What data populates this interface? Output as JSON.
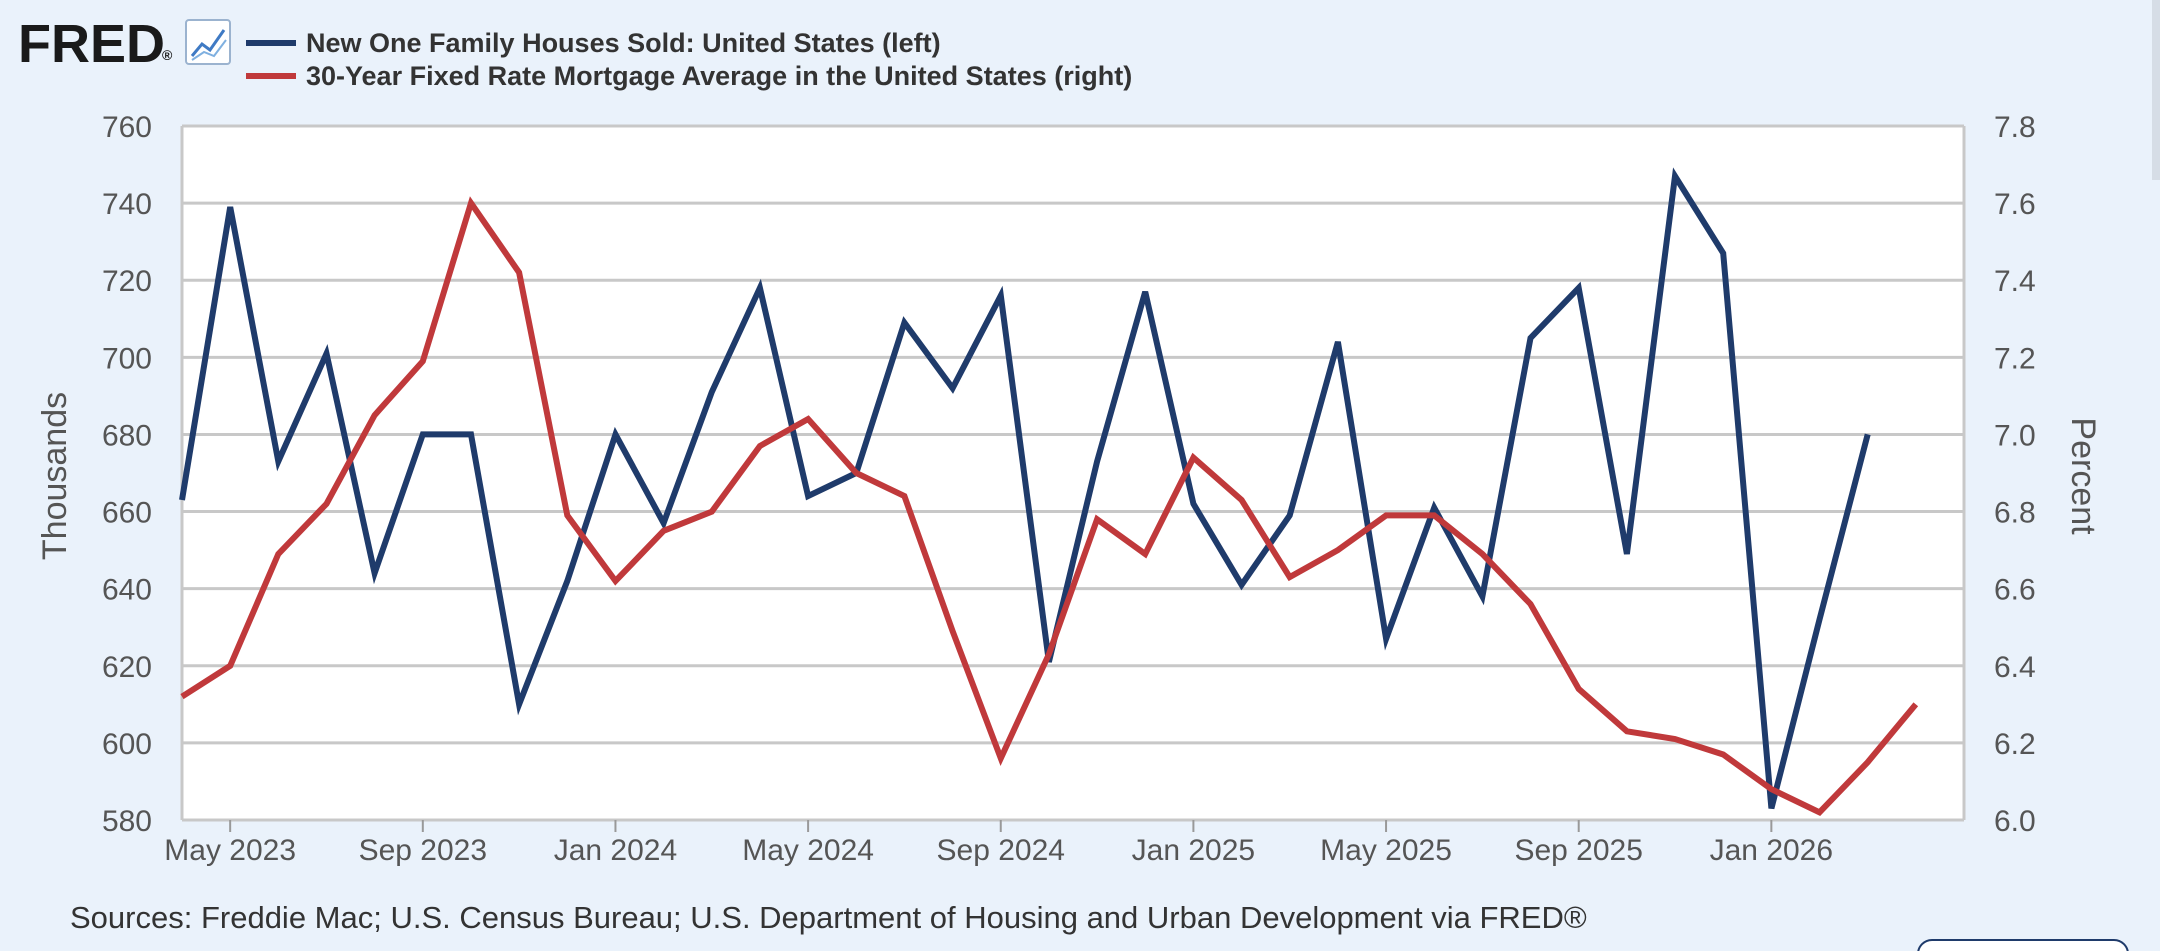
{
  "header": {
    "logo_text": "FRED",
    "logo_mark": "®",
    "chart_icon": "line-chart-icon"
  },
  "colors": {
    "series_left": "#1f3b6b",
    "series_right": "#c0393b",
    "background": "#eaf2fb",
    "plot_background": "#ffffff",
    "grid": "#c8c8c8"
  },
  "footer": {
    "sources": "Sources: Freddie Mac; U.S. Census Bureau; U.S. Department of Housing and Urban Development via FRED®"
  },
  "chart_data": {
    "type": "line",
    "title": "",
    "x_labels": [
      "May 2023",
      "Sep 2023",
      "Jan 2024",
      "May 2024",
      "Sep 2024",
      "Jan 2025",
      "May 2025",
      "Sep 2025",
      "Jan 2026"
    ],
    "x_range": [
      "2023-04",
      "2026-05"
    ],
    "y_left": {
      "label": "Thousands",
      "range": [
        580,
        760
      ],
      "ticks": [
        "760",
        "740",
        "720",
        "700",
        "680",
        "660",
        "640",
        "620",
        "600",
        "580"
      ]
    },
    "y_right": {
      "label": "Percent",
      "range": [
        6.0,
        7.8
      ],
      "ticks": [
        "7.8",
        "7.6",
        "7.4",
        "7.2",
        "7.0",
        "6.8",
        "6.6",
        "6.4",
        "6.2",
        "6.0"
      ]
    },
    "grid": true,
    "legend_position": "top-left",
    "series": [
      {
        "name": "New One Family Houses Sold: United States (left)",
        "axis": "left",
        "x": [
          "2023-04",
          "2023-05",
          "2023-06",
          "2023-07",
          "2023-08",
          "2023-09",
          "2023-10",
          "2023-11",
          "2023-12",
          "2024-01",
          "2024-02",
          "2024-03",
          "2024-04",
          "2024-05",
          "2024-06",
          "2024-07",
          "2024-08",
          "2024-09",
          "2024-10",
          "2024-11",
          "2024-12",
          "2025-01",
          "2025-02",
          "2025-03",
          "2025-04",
          "2025-05",
          "2025-06",
          "2025-07",
          "2025-08",
          "2025-09",
          "2025-10",
          "2025-11",
          "2025-12",
          "2026-01",
          "2026-02",
          "2026-03"
        ],
        "values": [
          663,
          739,
          673,
          701,
          644,
          680,
          680,
          610,
          642,
          680,
          657,
          691,
          718,
          664,
          670,
          709,
          692,
          716,
          621,
          673,
          717,
          662,
          641,
          659,
          704,
          627,
          661,
          638,
          705,
          718,
          649,
          747,
          727,
          583,
          632,
          680
        ]
      },
      {
        "name": "30-Year Fixed Rate Mortgage Average in the United States (right)",
        "axis": "right",
        "x": [
          "2023-04",
          "2023-05",
          "2023-06",
          "2023-07",
          "2023-08",
          "2023-09",
          "2023-10",
          "2023-11",
          "2023-12",
          "2024-01",
          "2024-02",
          "2024-03",
          "2024-04",
          "2024-05",
          "2024-06",
          "2024-07",
          "2024-08",
          "2024-09",
          "2024-10",
          "2024-11",
          "2024-12",
          "2025-01",
          "2025-02",
          "2025-03",
          "2025-04",
          "2025-05",
          "2025-06",
          "2025-07",
          "2025-08",
          "2025-09",
          "2025-10",
          "2025-11",
          "2025-12",
          "2026-01",
          "2026-02",
          "2026-03",
          "2026-04"
        ],
        "values": [
          6.32,
          6.4,
          6.69,
          6.82,
          7.05,
          7.19,
          7.6,
          7.42,
          6.79,
          6.62,
          6.75,
          6.8,
          6.97,
          7.04,
          6.9,
          6.84,
          6.49,
          6.16,
          6.43,
          6.78,
          6.69,
          6.94,
          6.83,
          6.63,
          6.7,
          6.79,
          6.79,
          6.69,
          6.56,
          6.34,
          6.23,
          6.21,
          6.17,
          6.08,
          6.02,
          6.15,
          6.3
        ]
      }
    ]
  }
}
